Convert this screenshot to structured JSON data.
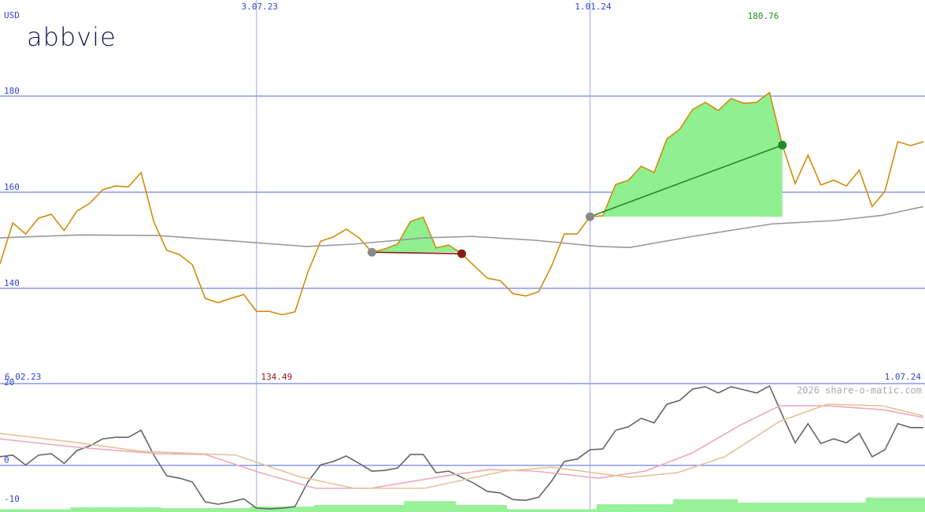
{
  "logo": "abbvie",
  "watermark": "2026 share-o-matic.com",
  "chart_data": [
    {
      "type": "line",
      "y_unit": "USD",
      "max_label": "180.76",
      "min_label": "134.49",
      "max_color": "#228822",
      "min_color": "#8b1a1a",
      "categories": [
        "6.02.23",
        null,
        null,
        null,
        null,
        null,
        null,
        null,
        null,
        null,
        null,
        null,
        null,
        null,
        null,
        null,
        null,
        null,
        null,
        null,
        "3.07.23",
        null,
        null,
        null,
        null,
        null,
        null,
        null,
        null,
        null,
        null,
        null,
        null,
        null,
        null,
        null,
        null,
        null,
        null,
        null,
        null,
        null,
        null,
        null,
        null,
        null,
        "1.01.24",
        null,
        null,
        null,
        null,
        null,
        null,
        null,
        null,
        null,
        null,
        null,
        null,
        null,
        null,
        null,
        null,
        null,
        null,
        null,
        null,
        null,
        null,
        null,
        null,
        null,
        "1.07.24"
      ],
      "xlim": [
        0,
        72
      ],
      "ylim": [
        120,
        200
      ],
      "yticks": [
        180,
        160,
        140
      ],
      "grid": true,
      "series": [
        {
          "color": "#d08c0c",
          "values": [
            145.1,
            153.6,
            151.3,
            154.6,
            155.4,
            152,
            156.1,
            157.7,
            160.5,
            161.3,
            161.1,
            164.1,
            153.8,
            147.9,
            147,
            144.9,
            137.9,
            137,
            137.9,
            138.7,
            135.2,
            135.2,
            134.49,
            135.1,
            143.3,
            149.8,
            150.7,
            152.3,
            150.5,
            147.5,
            148.2,
            149.2,
            153.9,
            154.8,
            148.4,
            149,
            147.2,
            144.6,
            142.1,
            141.6,
            138.9,
            138.4,
            139.3,
            144.6,
            151.3,
            151.3,
            154.9,
            155.1,
            161.6,
            162.5,
            165.4,
            164.1,
            171.1,
            173.1,
            177.2,
            178.7,
            177,
            179.5,
            178.5,
            178.7,
            180.76,
            169.8,
            161.8,
            167.7,
            161.5,
            162.5,
            161.3,
            164.6,
            157,
            160.2,
            170.5,
            169.7,
            170.5
          ]
        },
        {
          "color": "#999999",
          "x": [
            0,
            6.1,
            12.3,
            18.4,
            23.9,
            27.6,
            33.1,
            36.8,
            41.7,
            46.7,
            49.1,
            54,
            60.2,
            65.1,
            68.8,
            72
          ],
          "values": [
            150.5,
            151.1,
            151,
            149.8,
            148.7,
            149.2,
            150.5,
            150.8,
            150,
            148.7,
            148.5,
            150.8,
            153.4,
            154.1,
            155.2,
            157
          ]
        }
      ],
      "trades": [
        {
          "start": 29,
          "end": 36
        },
        {
          "start": 46,
          "end": 61
        }
      ],
      "gain_color": "#90f090",
      "loss_color": "#f4a0a0",
      "entry_color": "#888888"
    },
    {
      "type": "line",
      "xlim": [
        0,
        72
      ],
      "ylim": [
        -12,
        21
      ],
      "yticks": [
        20,
        0,
        -10
      ],
      "gridlines": [
        false,
        true,
        false
      ],
      "series": [
        {
          "color": "#666666",
          "values": [
            2.2,
            2.6,
            0.1,
            2.6,
            3,
            0.5,
            3.8,
            5,
            6.8,
            7.2,
            7.2,
            9,
            2.6,
            -2.7,
            -3.3,
            -4.3,
            -9.4,
            -10,
            -9.4,
            -8.6,
            -11,
            -11.2,
            -11,
            -10.6,
            -4.3,
            0.1,
            1,
            2.4,
            0.5,
            -1.5,
            -1.3,
            -0.7,
            2.8,
            2.8,
            -1.9,
            -1.5,
            -3.1,
            -4.7,
            -6.7,
            -7.1,
            -8.8,
            -9,
            -8.2,
            -4.1,
            1,
            1.6,
            4,
            4.2,
            9,
            9.9,
            12.1,
            10.9,
            15.7,
            16.7,
            19.6,
            20.2,
            18.6,
            20.2,
            19.4,
            18.6,
            20.4,
            12.9,
            5.8,
            10.7,
            5.6,
            6.8,
            5.8,
            8.2,
            2.2,
            4,
            10.7,
            9.7,
            9.7
          ]
        },
        {
          "color": "#f0a8b8",
          "x": [
            0,
            6.1,
            12.3,
            16,
            20.3,
            24.6,
            28.9,
            34.4,
            38.1,
            41.7,
            46.7,
            50.3,
            54,
            57.7,
            60.8,
            64.5,
            68.8,
            72
          ],
          "values": [
            6.8,
            4.6,
            3,
            2.8,
            -1.9,
            -5.9,
            -5.9,
            -2.9,
            -1.1,
            -1.5,
            -3.3,
            -1.5,
            3.2,
            10.3,
            15.3,
            15.3,
            14.3,
            12.3
          ]
        },
        {
          "color": "#e0c498",
          "x": [
            0,
            6.1,
            11,
            18.4,
            23.3,
            27.6,
            33.1,
            39.3,
            43,
            49.1,
            52.8,
            56.5,
            60.8,
            64.5,
            68.8,
            72
          ],
          "values": [
            8.2,
            5.8,
            3.6,
            2.6,
            -2.9,
            -5.9,
            -5.9,
            -1.5,
            -0.5,
            -3.1,
            -1.9,
            2.2,
            11.3,
            15.7,
            15.3,
            12.7
          ]
        }
      ],
      "bars": {
        "color": "#98f098",
        "values": [
          -11.3,
          -11.3,
          -11.3,
          -11.3,
          -11.3,
          -11.3,
          -10.8,
          -10.8,
          -10.8,
          -10.8,
          -10.8,
          -10.8,
          -10.8,
          -11,
          -11,
          -11,
          -11,
          -11,
          -11,
          -11,
          -10.6,
          -10.6,
          -10.6,
          -10.6,
          -10.6,
          -10.2,
          -10.2,
          -10.2,
          -10.2,
          -10.2,
          -10.2,
          -10.2,
          -9.2,
          -9.2,
          -9.2,
          -9.2,
          -10.2,
          -10.2,
          -10.2,
          -10.2,
          -11.3,
          -11.3,
          -11.3,
          -11.3,
          -11.3,
          -11.3,
          -11.3,
          -10,
          -10,
          -10,
          -10,
          -10,
          -10,
          -8.7,
          -8.7,
          -8.7,
          -8.7,
          -8.7,
          -9.6,
          -9.6,
          -9.6,
          -9.6,
          -9.6,
          -9.6,
          -9.6,
          -9.6,
          -9.6,
          -9.6,
          -8.3,
          -8.3,
          -8.3,
          -8.3,
          -8.3
        ]
      }
    }
  ]
}
